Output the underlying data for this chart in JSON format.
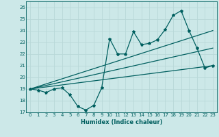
{
  "xlabel": "Humidex (Indice chaleur)",
  "bg_color": "#cce8e8",
  "grid_color": "#b8d8d8",
  "line_color": "#005f5f",
  "xlim": [
    -0.5,
    23.5
  ],
  "ylim": [
    17,
    26.5
  ],
  "yticks": [
    17,
    18,
    19,
    20,
    21,
    22,
    23,
    24,
    25,
    26
  ],
  "xticks": [
    0,
    1,
    2,
    3,
    4,
    5,
    6,
    7,
    8,
    9,
    10,
    11,
    12,
    13,
    14,
    15,
    16,
    17,
    18,
    19,
    20,
    21,
    22,
    23
  ],
  "zigzag": {
    "x": [
      0,
      1,
      2,
      3,
      4,
      5,
      6,
      7,
      8,
      9,
      10,
      11,
      12,
      13,
      14,
      15,
      16,
      17,
      18,
      19,
      20,
      21,
      22,
      23
    ],
    "y": [
      19.0,
      18.9,
      18.7,
      19.0,
      19.1,
      18.5,
      17.5,
      17.2,
      17.6,
      19.1,
      23.3,
      22.0,
      22.0,
      23.9,
      22.8,
      22.9,
      23.2,
      24.1,
      25.3,
      25.7,
      24.0,
      22.5,
      20.8,
      21.0
    ]
  },
  "trend_lines": [
    {
      "x": [
        0,
        23
      ],
      "y": [
        19.0,
        24.0
      ]
    },
    {
      "x": [
        0,
        23
      ],
      "y": [
        19.0,
        22.5
      ]
    },
    {
      "x": [
        0,
        23
      ],
      "y": [
        19.0,
        21.0
      ]
    }
  ]
}
